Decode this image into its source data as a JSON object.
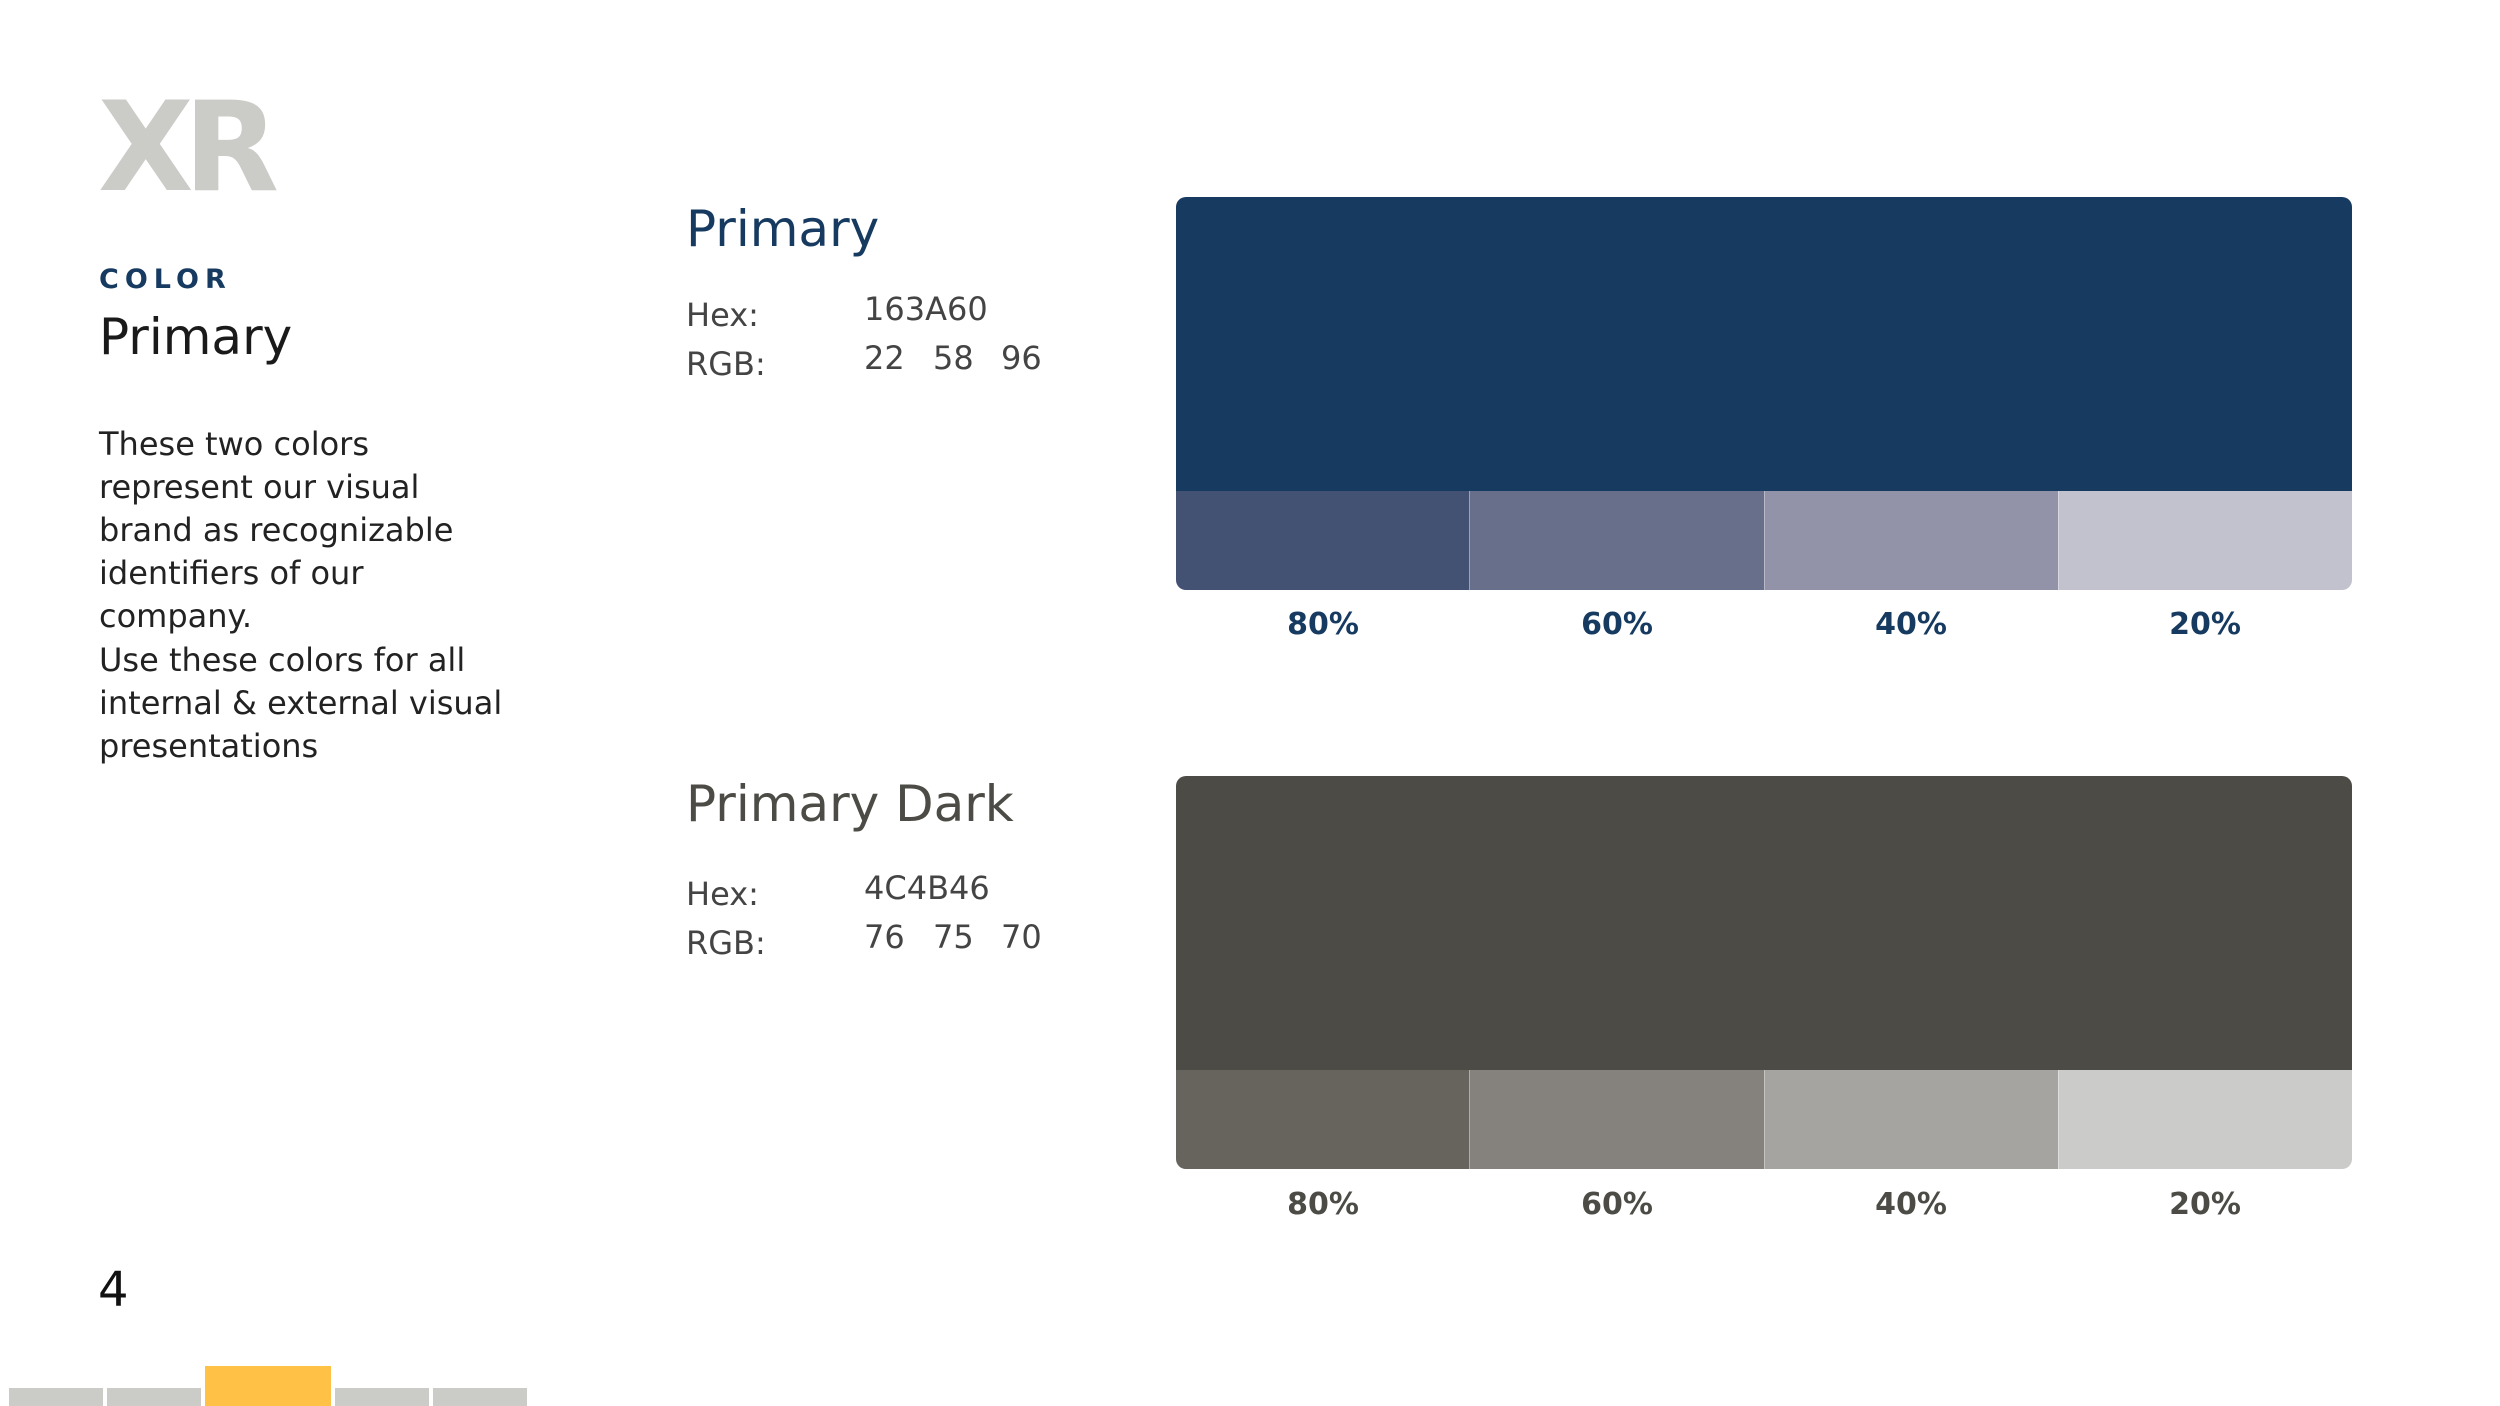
{
  "logo": {
    "text": "XR",
    "color": "#cbcbc7"
  },
  "sidebar": {
    "eyebrow": "COLOR",
    "title": "Primary",
    "paragraph_1": "These two colors represent our visual brand as recognizable identifiers of our company.",
    "paragraph_2": "Use these colors for all internal & external visual presentations"
  },
  "page_number": "4",
  "progress": {
    "segment_count": 5,
    "active_index": 2,
    "inactive_color": "#cbcbc7",
    "active_color": "#ffc247"
  },
  "swatches": [
    {
      "name": "Primary",
      "hex_label": "Hex:",
      "hex_value": "163A60",
      "rgb_label": "RGB:",
      "rgb": [
        "22",
        "58",
        "96"
      ],
      "base_color": "#163a60",
      "name_color": "#163a60",
      "label_color": "#163a60",
      "tints": [
        {
          "label": "80%",
          "color": "#435172"
        },
        {
          "label": "60%",
          "color": "#686f8a"
        },
        {
          "label": "40%",
          "color": "#9293a8"
        },
        {
          "label": "20%",
          "color": "#c2c2ce"
        }
      ]
    },
    {
      "name": "Primary Dark",
      "hex_label": "Hex:",
      "hex_value": "4C4B46",
      "rgb_label": "RGB:",
      "rgb": [
        "76",
        "75",
        "70"
      ],
      "base_color": "#4c4b46",
      "name_color": "#4c4b46",
      "label_color": "#4c4b46",
      "tints": [
        {
          "label": "80%",
          "color": "#67635d"
        },
        {
          "label": "60%",
          "color": "#85827d"
        },
        {
          "label": "40%",
          "color": "#a6a4a0"
        },
        {
          "label": "20%",
          "color": "#cbcbc9"
        }
      ]
    }
  ],
  "colors": {
    "eyebrow": "#163a60"
  }
}
